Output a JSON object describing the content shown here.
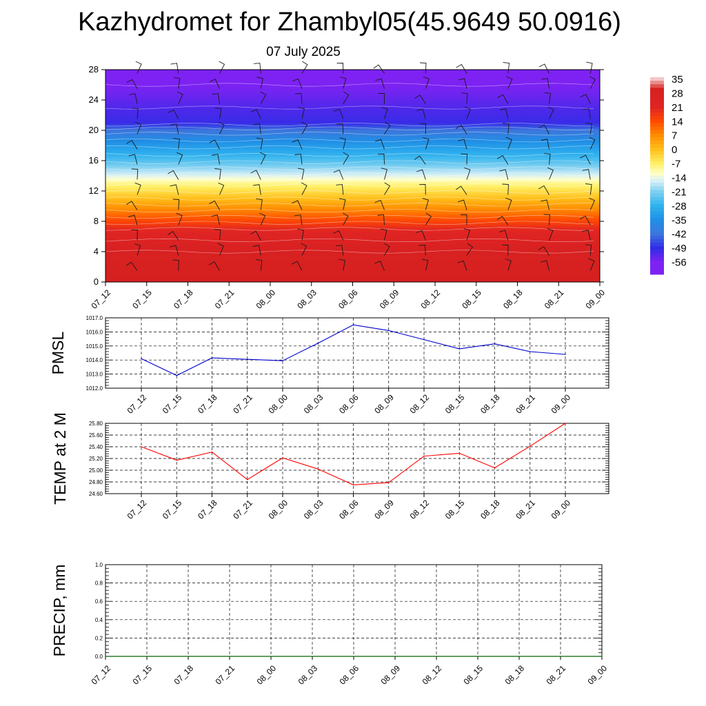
{
  "title": "Kazhydromet for Zhambyl05(45.9649 50.0916)",
  "subtitle": "07 July 2025",
  "time_labels": [
    "07_12",
    "07_15",
    "07_18",
    "07_21",
    "08_00",
    "08_03",
    "08_06",
    "08_09",
    "08_12",
    "08_15",
    "08_18",
    "08_21",
    "09_00"
  ],
  "chart_data": [
    {
      "type": "heatmap",
      "title": "",
      "xlabel": "",
      "ylabel": "",
      "x": [
        "07_12",
        "07_15",
        "07_18",
        "07_21",
        "08_00",
        "08_03",
        "08_06",
        "08_09",
        "08_12",
        "08_15",
        "08_18",
        "08_21",
        "09_00"
      ],
      "yticks": [
        0,
        4,
        8,
        12,
        16,
        20,
        24,
        28
      ],
      "ylim": [
        0,
        28
      ],
      "colorbar": {
        "labels": [
          "35",
          "28",
          "21",
          "14",
          "7",
          "0",
          "-7",
          "-14",
          "-21",
          "-28",
          "-35",
          "-42",
          "-49",
          "-56"
        ],
        "stops": [
          {
            "value": 35,
            "color": "#f2c6c6"
          },
          {
            "value": 30,
            "color": "#d62020"
          },
          {
            "value": 21,
            "color": "#e02424"
          },
          {
            "value": 14,
            "color": "#ff4a00"
          },
          {
            "value": 7,
            "color": "#ff8c00"
          },
          {
            "value": 0,
            "color": "#ffbe1a"
          },
          {
            "value": -7,
            "color": "#fff066"
          },
          {
            "value": -12,
            "color": "#ffffc8"
          },
          {
            "value": -16,
            "color": "#d4effa"
          },
          {
            "value": -21,
            "color": "#7fd0f0"
          },
          {
            "value": -28,
            "color": "#2fb2ee"
          },
          {
            "value": -35,
            "color": "#1f90e6"
          },
          {
            "value": -42,
            "color": "#3c76dc"
          },
          {
            "value": -49,
            "color": "#2e2de6"
          },
          {
            "value": -56,
            "color": "#7d22f2"
          }
        ]
      },
      "temperature_profile": [
        {
          "height": 0,
          "value": 30
        },
        {
          "height": 4,
          "value": 28
        },
        {
          "height": 7,
          "value": 20
        },
        {
          "height": 9,
          "value": 10
        },
        {
          "height": 11,
          "value": 0
        },
        {
          "height": 13,
          "value": -9
        },
        {
          "height": 14,
          "value": -15
        },
        {
          "height": 16,
          "value": -25
        },
        {
          "height": 18,
          "value": -33
        },
        {
          "height": 20,
          "value": -42
        },
        {
          "height": 21,
          "value": -50
        },
        {
          "height": 23,
          "value": -52
        },
        {
          "height": 25,
          "value": -55
        },
        {
          "height": 28,
          "value": -58
        }
      ],
      "wind_barb_levels": [
        1.5,
        3.5,
        5.5,
        7.5,
        9.5,
        11.5,
        13.5,
        15.5,
        17.5,
        19.5,
        21.5,
        23.5,
        25.5,
        27.5
      ],
      "wind_barb_colors": {
        "barb": "#1a1a1a",
        "contour": "#ffffff"
      }
    },
    {
      "type": "line",
      "title": "",
      "xlabel": "",
      "ylabel": "PMSL",
      "x": [
        "07_12",
        "07_15",
        "07_18",
        "07_21",
        "08_00",
        "08_03",
        "08_06",
        "08_09",
        "08_12",
        "08_15",
        "08_18",
        "08_21",
        "09_00"
      ],
      "ylim": [
        1012.0,
        1017.0
      ],
      "yticks": [
        "1012.0",
        "1013.0",
        "1014.0",
        "1015.0",
        "1016.0",
        "1017.0"
      ],
      "grid": true,
      "series": [
        {
          "color": "#0000cc",
          "values": [
            1014.1,
            1012.9,
            1014.15,
            1014.05,
            1013.95,
            1015.2,
            1016.5,
            1016.1,
            1015.45,
            1014.8,
            1015.15,
            1014.6,
            1014.4
          ]
        }
      ]
    },
    {
      "type": "line",
      "title": "",
      "xlabel": "",
      "ylabel": "TEMP at 2 M",
      "x": [
        "07_12",
        "07_15",
        "07_18",
        "07_21",
        "08_00",
        "08_03",
        "08_06",
        "08_09",
        "08_12",
        "08_15",
        "08_18",
        "08_21",
        "09_00"
      ],
      "ylim": [
        24.6,
        25.8
      ],
      "yticks": [
        "24.60",
        "24.80",
        "25.00",
        "25.20",
        "25.40",
        "25.60",
        "25.80"
      ],
      "grid": true,
      "series": [
        {
          "color": "#ff0000",
          "values": [
            25.4,
            25.17,
            25.31,
            24.84,
            25.21,
            25.02,
            24.75,
            24.79,
            25.24,
            25.29,
            25.04,
            25.41,
            25.8
          ]
        }
      ]
    },
    {
      "type": "bar",
      "title": "",
      "xlabel": "",
      "ylabel": "PRECIP, mm",
      "x": [
        "07_12",
        "07_15",
        "07_18",
        "07_21",
        "08_00",
        "08_03",
        "08_06",
        "08_09",
        "08_12",
        "08_15",
        "08_18",
        "08_21",
        "09_00"
      ],
      "ylim": [
        0.0,
        1.0
      ],
      "yticks": [
        "0.0",
        "0.2",
        "0.4",
        "0.6",
        "0.8",
        "1.0"
      ],
      "grid": true,
      "series": [
        {
          "color": "#006400",
          "values": [
            0,
            0,
            0,
            0,
            0,
            0,
            0,
            0,
            0,
            0,
            0,
            0,
            0
          ]
        }
      ]
    }
  ]
}
